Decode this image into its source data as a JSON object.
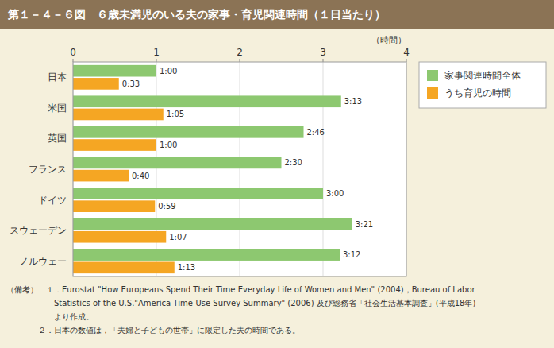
{
  "chart_data": {
    "type": "bar",
    "orientation": "horizontal",
    "title": "第１－４－６図　６歳未満児のいる夫の家事・育児関連時間（１日当たり）",
    "categories": [
      "日本",
      "米国",
      "英国",
      "フランス",
      "ドイツ",
      "スウェーデン",
      "ノルウェー"
    ],
    "series": [
      {
        "name": "家事関連時間全体",
        "color": "#8DC870",
        "values": [
          1.0,
          3.2167,
          2.7667,
          2.5,
          3.0,
          3.35,
          3.2
        ],
        "value_labels": [
          "1:00",
          "3:13",
          "2:46",
          "2:30",
          "3:00",
          "3:21",
          "3:12"
        ]
      },
      {
        "name": "うち育児の時間",
        "color": "#F5A623",
        "values": [
          0.55,
          1.0833,
          1.0,
          0.6667,
          0.9833,
          1.1167,
          1.2167
        ],
        "value_labels": [
          "0:33",
          "1:05",
          "1:00",
          "0:40",
          "0:59",
          "1:07",
          "1:13"
        ]
      }
    ],
    "x_label": "（時間）",
    "xlim": [
      0,
      4
    ],
    "xticks": [
      0,
      1,
      2,
      3,
      4
    ],
    "grid": true,
    "legend": "right",
    "data_labels": true,
    "annotations": [
      "（備考）　１．Eurostat \"How Europeans Spend Their Time Everyday Life of Women and Men\" (2004)，Bureau of Labor",
      "　　　　　　Statistics of the U.S.\"America Time-Use Survey Summary\" (2006) 及び総務省「社会生活基本調査」(平成18年)",
      "　　　　　　より作成。",
      "　　　　２．日本の数値は，「夫婦と子どもの世帯」に限定した夫の時間である。"
    ]
  }
}
